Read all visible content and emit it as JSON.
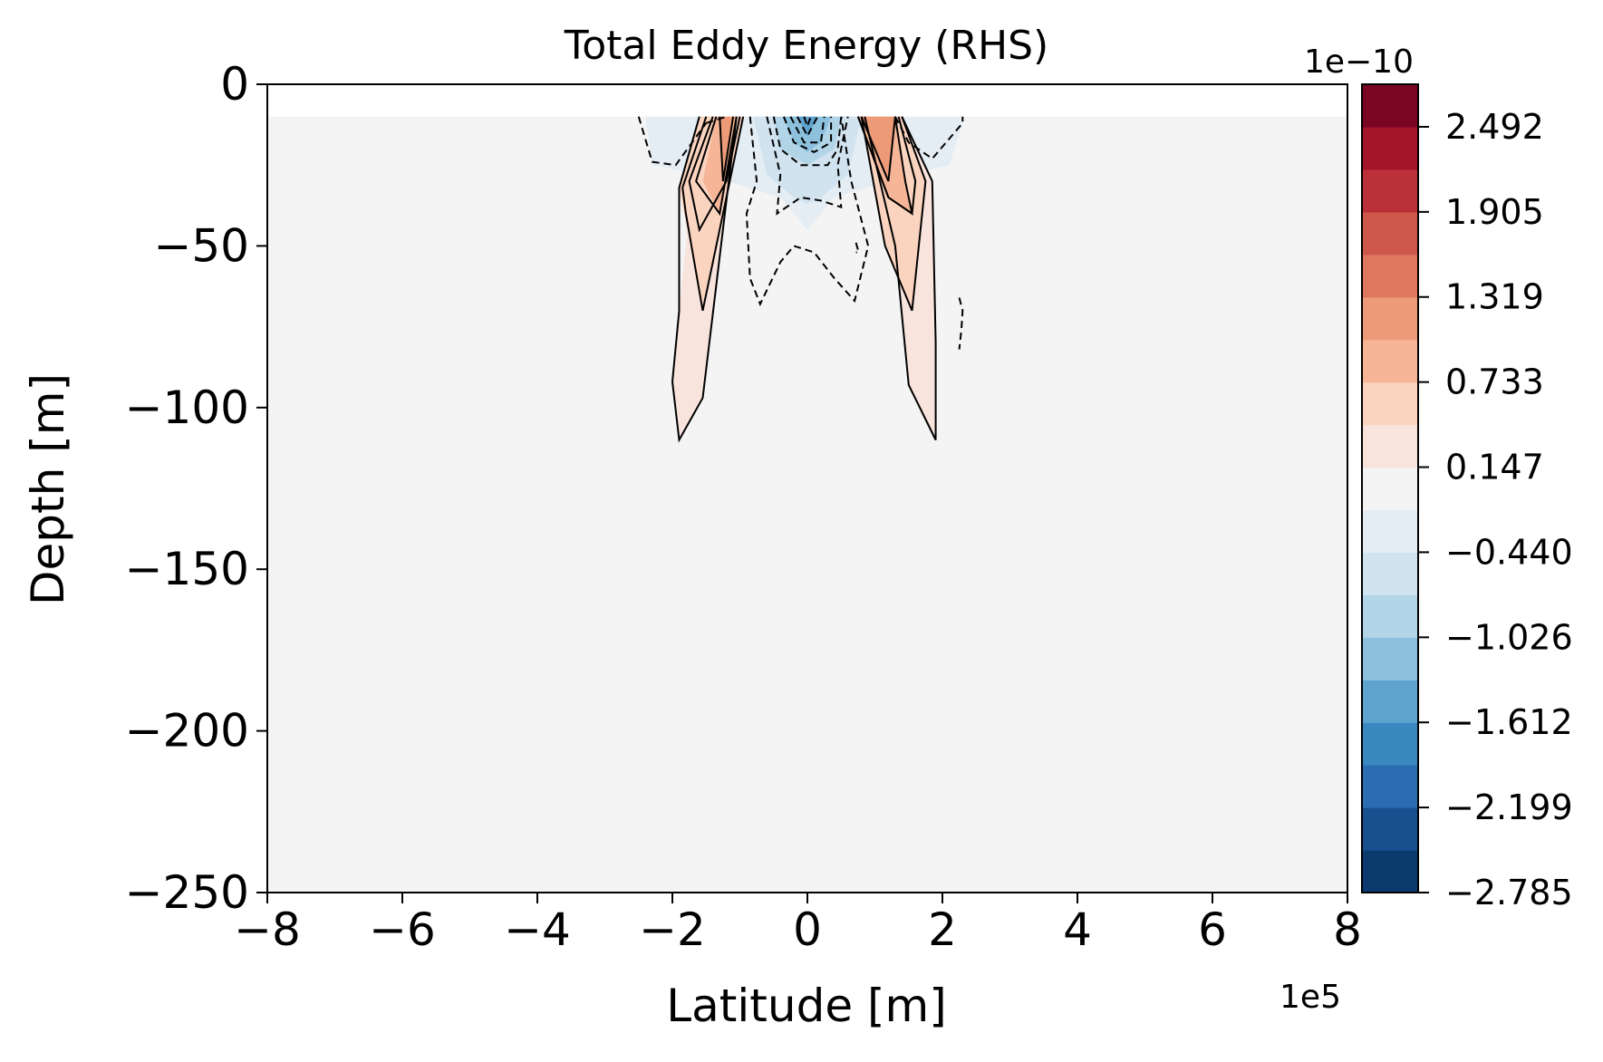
{
  "chart_data": {
    "type": "contourf",
    "title": "Total Eddy Energy (RHS)",
    "xlabel": "Latitude [m]",
    "ylabel": "Depth [m]",
    "x_multiplier": "1e5",
    "xlim": [
      -8,
      8
    ],
    "ylim": [
      -250,
      0
    ],
    "x_ticks": [
      -8,
      -6,
      -4,
      -2,
      0,
      2,
      4,
      6,
      8
    ],
    "x_tick_labels": [
      "−8",
      "−6",
      "−4",
      "−2",
      "0",
      "2",
      "4",
      "6",
      "8"
    ],
    "y_ticks": [
      0,
      -50,
      -100,
      -150,
      -200,
      -250
    ],
    "y_tick_labels": [
      "0",
      "−50",
      "−100",
      "−150",
      "−200",
      "−250"
    ],
    "background_level_color": "#f4f4f4",
    "colorbar": {
      "multiplier": "1e−10",
      "min": -2.785,
      "max": 2.785,
      "ticks": [
        -2.785,
        -2.199,
        -1.612,
        -1.026,
        -0.44,
        0.147,
        0.733,
        1.319,
        1.905,
        2.492
      ],
      "tick_labels": [
        "−2.785",
        "−2.199",
        "−1.612",
        "−1.026",
        "−0.440",
        "0.147",
        "0.733",
        "1.319",
        "1.905",
        "2.492"
      ],
      "colors": [
        "#0b3a6e",
        "#174f8f",
        "#2a6db0",
        "#3a88c0",
        "#5fa3cf",
        "#8cc0dd",
        "#b1d4e7",
        "#d0e3ef",
        "#e4edf4",
        "#f4f4f4",
        "#f8e4dc",
        "#fbd4bf",
        "#f5b596",
        "#ec9a78",
        "#df7760",
        "#ce574c",
        "#bc303a",
        "#a4152a",
        "#7a0523"
      ]
    },
    "regions": [
      {
        "name": "blue-outer",
        "level": -0.44,
        "color": "#e4edf4",
        "polygon": [
          [
            -2.4,
            -10
          ],
          [
            -2.3,
            -25
          ],
          [
            -1.5,
            -28
          ],
          [
            -0.4,
            -35
          ],
          [
            0,
            -45
          ],
          [
            0.4,
            -35
          ],
          [
            1.5,
            -28
          ],
          [
            2.1,
            -25
          ],
          [
            2.3,
            -12
          ],
          [
            2.3,
            -10
          ]
        ]
      },
      {
        "name": "blue-inner-1",
        "level": -1.026,
        "color": "#d0e3ef",
        "polygon": [
          [
            -0.8,
            -10
          ],
          [
            -0.6,
            -28
          ],
          [
            -0.2,
            -35
          ],
          [
            0,
            -37
          ],
          [
            0.2,
            -35
          ],
          [
            0.6,
            -28
          ],
          [
            0.8,
            -10
          ]
        ]
      },
      {
        "name": "blue-inner-2",
        "level": -1.612,
        "color": "#b1d4e7",
        "polygon": [
          [
            -0.5,
            -10
          ],
          [
            -0.4,
            -20
          ],
          [
            0,
            -25
          ],
          [
            0.4,
            -20
          ],
          [
            0.5,
            -10
          ]
        ]
      },
      {
        "name": "blue-inner-3",
        "level": -2.199,
        "color": "#8cc0dd",
        "polygon": [
          [
            -0.35,
            -10
          ],
          [
            -0.2,
            -18
          ],
          [
            0,
            -21
          ],
          [
            0.2,
            -18
          ],
          [
            0.35,
            -10
          ]
        ]
      },
      {
        "name": "blue-inner-4",
        "level": -2.785,
        "color": "#5fa3cf",
        "polygon": [
          [
            -0.15,
            -10
          ],
          [
            0,
            -16
          ],
          [
            0.15,
            -10
          ]
        ]
      },
      {
        "name": "red-left-1",
        "level": 0.147,
        "color": "#f8e4dc",
        "polygon": [
          [
            -1.6,
            -10
          ],
          [
            -1.9,
            -70
          ],
          [
            -2.0,
            -92
          ],
          [
            -1.9,
            -110
          ],
          [
            -1.55,
            -97
          ],
          [
            -1.05,
            -10
          ]
        ]
      },
      {
        "name": "red-left-2",
        "level": 0.733,
        "color": "#fbd4bf",
        "polygon": [
          [
            -1.6,
            -10
          ],
          [
            -1.9,
            -32
          ],
          [
            -1.55,
            -70
          ],
          [
            -1.05,
            -20
          ],
          [
            -0.95,
            -10
          ]
        ]
      },
      {
        "name": "red-left-3",
        "level": 1.319,
        "color": "#f5b596",
        "polygon": [
          [
            -1.35,
            -10
          ],
          [
            -1.55,
            -30
          ],
          [
            -1.3,
            -40
          ],
          [
            -1.05,
            -10
          ]
        ]
      },
      {
        "name": "red-left-4",
        "level": 1.905,
        "color": "#ec9a78",
        "polygon": [
          [
            -1.3,
            -10
          ],
          [
            -1.25,
            -30
          ],
          [
            -1.1,
            -10
          ]
        ]
      },
      {
        "name": "red-right-1",
        "level": 0.147,
        "color": "#f8e4dc",
        "polygon": [
          [
            0.85,
            -10
          ],
          [
            1.3,
            -50
          ],
          [
            1.5,
            -93
          ],
          [
            1.9,
            -110
          ],
          [
            1.9,
            -80
          ],
          [
            1.85,
            -30
          ],
          [
            1.4,
            -10
          ]
        ]
      },
      {
        "name": "red-right-2",
        "level": 0.733,
        "color": "#fbd4bf",
        "polygon": [
          [
            0.8,
            -10
          ],
          [
            1.15,
            -50
          ],
          [
            1.55,
            -70
          ],
          [
            1.75,
            -30
          ],
          [
            1.4,
            -10
          ]
        ]
      },
      {
        "name": "red-right-3",
        "level": 1.319,
        "color": "#f5b596",
        "polygon": [
          [
            0.75,
            -10
          ],
          [
            1.2,
            -35
          ],
          [
            1.55,
            -40
          ],
          [
            1.45,
            -30
          ],
          [
            1.3,
            -10
          ]
        ]
      },
      {
        "name": "red-right-4",
        "level": 1.905,
        "color": "#ec9a78",
        "polygon": [
          [
            0.8,
            -10
          ],
          [
            1.2,
            -30
          ],
          [
            1.3,
            -10
          ]
        ]
      }
    ],
    "contours_positive": [
      [
        [
          -1.6,
          -10
        ],
        [
          -1.9,
          -32
        ],
        [
          -1.9,
          -70
        ],
        [
          -2.0,
          -92
        ],
        [
          -1.9,
          -110
        ],
        [
          -1.55,
          -97
        ],
        [
          -1.05,
          -10
        ]
      ],
      [
        [
          -1.5,
          -10
        ],
        [
          -1.85,
          -32
        ],
        [
          -1.8,
          -40
        ],
        [
          -1.55,
          -70
        ],
        [
          -1.05,
          -20
        ],
        [
          -0.95,
          -10
        ]
      ],
      [
        [
          -1.4,
          -10
        ],
        [
          -1.75,
          -30
        ],
        [
          -1.6,
          -45
        ],
        [
          -1.2,
          -30
        ],
        [
          -1.0,
          -10
        ]
      ],
      [
        [
          -1.35,
          -10
        ],
        [
          -1.65,
          -30
        ],
        [
          -1.3,
          -40
        ],
        [
          -1.05,
          -10
        ]
      ],
      [
        [
          -1.3,
          -10
        ],
        [
          -1.25,
          -30
        ],
        [
          -1.1,
          -10
        ]
      ],
      [
        [
          0.85,
          -10
        ],
        [
          1.3,
          -50
        ],
        [
          1.5,
          -93
        ],
        [
          1.9,
          -110
        ],
        [
          1.9,
          -80
        ],
        [
          1.85,
          -30
        ],
        [
          1.4,
          -10
        ]
      ],
      [
        [
          0.8,
          -10
        ],
        [
          1.15,
          -50
        ],
        [
          1.55,
          -70
        ],
        [
          1.75,
          -30
        ],
        [
          1.4,
          -10
        ]
      ],
      [
        [
          0.75,
          -10
        ],
        [
          1.2,
          -35
        ],
        [
          1.55,
          -40
        ],
        [
          1.6,
          -30
        ],
        [
          1.35,
          -10
        ]
      ],
      [
        [
          0.75,
          -10
        ],
        [
          1.2,
          -35
        ],
        [
          1.55,
          -40
        ],
        [
          1.45,
          -30
        ],
        [
          1.3,
          -10
        ]
      ],
      [
        [
          0.8,
          -10
        ],
        [
          1.2,
          -30
        ],
        [
          1.3,
          -10
        ]
      ]
    ],
    "contours_negative": [
      [
        [
          -2.5,
          -10
        ],
        [
          -2.3,
          -24
        ],
        [
          -1.95,
          -25
        ],
        [
          -1.5,
          -12
        ]
      ],
      [
        [
          -1.5,
          -12
        ],
        [
          -1.2,
          -10
        ]
      ],
      [
        [
          1.3,
          -10
        ],
        [
          1.5,
          -18
        ],
        [
          1.85,
          -23
        ],
        [
          2.3,
          -12
        ],
        [
          2.3,
          -10
        ]
      ],
      [
        [
          -0.85,
          -10
        ],
        [
          -0.75,
          -30
        ],
        [
          -0.9,
          -40
        ],
        [
          -0.85,
          -60
        ],
        [
          -0.7,
          -68
        ],
        [
          -0.4,
          -55
        ],
        [
          -0.2,
          -50
        ],
        [
          0.1,
          -52
        ],
        [
          0.4,
          -60
        ],
        [
          0.7,
          -67
        ],
        [
          0.9,
          -50
        ],
        [
          0.65,
          -30
        ],
        [
          0.5,
          -10
        ]
      ],
      [
        [
          -0.6,
          -10
        ],
        [
          -0.4,
          -28
        ],
        [
          -0.45,
          -40
        ],
        [
          -0.1,
          -35
        ],
        [
          0.2,
          -36
        ],
        [
          0.5,
          -38
        ],
        [
          0.45,
          -25
        ],
        [
          0.6,
          -10
        ]
      ],
      [
        [
          -0.5,
          -10
        ],
        [
          -0.4,
          -20
        ],
        [
          -0.1,
          -25
        ],
        [
          0.3,
          -25
        ],
        [
          0.45,
          -20
        ],
        [
          0.5,
          -10
        ]
      ],
      [
        [
          -0.35,
          -10
        ],
        [
          -0.2,
          -18
        ],
        [
          0.1,
          -21
        ],
        [
          0.35,
          -18
        ],
        [
          0.35,
          -10
        ]
      ],
      [
        [
          -0.25,
          -10
        ],
        [
          -0.05,
          -18
        ],
        [
          0.2,
          -18
        ],
        [
          0.25,
          -10
        ]
      ],
      [
        [
          -0.15,
          -10
        ],
        [
          0,
          -16
        ],
        [
          0.15,
          -10
        ]
      ],
      [
        [
          -0.05,
          -10
        ],
        [
          0,
          -13
        ],
        [
          0.05,
          -10
        ]
      ],
      [
        [
          2.25,
          -66
        ],
        [
          2.3,
          -70
        ],
        [
          2.28,
          -76
        ],
        [
          2.25,
          -82
        ]
      ],
      [
        [
          0.72,
          -49
        ],
        [
          0.76,
          -52
        ],
        [
          0.72,
          -52
        ]
      ]
    ]
  }
}
